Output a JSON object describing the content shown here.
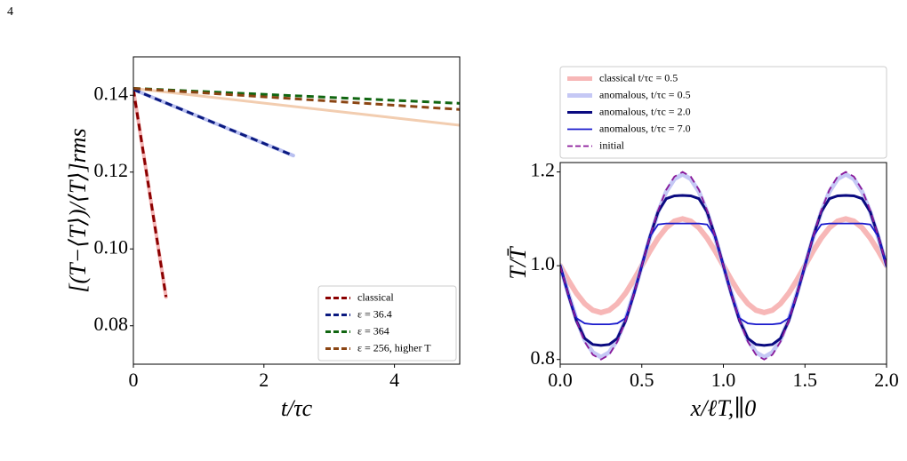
{
  "page_number": "4",
  "chart_data": [
    {
      "type": "line",
      "x_label": "t/τc",
      "y_label": "[(T−⟨T⟩)/⟨T⟩]rms",
      "xlim": [
        0,
        5
      ],
      "ylim": [
        0.07,
        0.15
      ],
      "xticks": [
        0,
        2,
        4
      ],
      "yticks": [
        0.08,
        {
          "value": 0.1,
          "label": "0.10"
        },
        0.12,
        0.14
      ],
      "legend": "lower right",
      "series": [
        {
          "color": "#f4b4b4",
          "width": 4,
          "dashed": false,
          "x": [
            0,
            0.5
          ],
          "values": [
            0.1415,
            0.0875
          ]
        },
        {
          "color": "#b8bff0",
          "width": 4,
          "dashed": false,
          "x": [
            0,
            2.45
          ],
          "values": [
            0.1415,
            0.1243
          ]
        },
        {
          "color": "#f2cdb0",
          "width": 3,
          "dashed": false,
          "x": [
            0,
            5
          ],
          "values": [
            0.1418,
            0.1322
          ]
        },
        {
          "name": "classical",
          "color": "#8b0000",
          "width": 3,
          "dashed": true,
          "x": [
            0,
            0.5
          ],
          "values": [
            0.1415,
            0.0875
          ]
        },
        {
          "name": "ε = 36.4",
          "color": "#0b1a80",
          "width": 3,
          "dashed": true,
          "x": [
            0,
            2.45
          ],
          "values": [
            0.1415,
            0.1243
          ]
        },
        {
          "name": "ε = 364",
          "color": "#116611",
          "width": 3,
          "dashed": true,
          "x": [
            0,
            5
          ],
          "values": [
            0.1418,
            0.1379
          ]
        },
        {
          "name": "ε = 256, higher T",
          "color": "#8b4513",
          "width": 3,
          "dashed": true,
          "x": [
            0,
            5
          ],
          "values": [
            0.1418,
            0.1363
          ]
        }
      ]
    },
    {
      "type": "line",
      "x_label": "x/ℓT,∥0",
      "y_label": "T/T̄",
      "xlim": [
        0,
        2
      ],
      "ylim": [
        0.79,
        1.22
      ],
      "xticks": [
        {
          "value": 0,
          "label": "0.0"
        },
        0.5,
        {
          "value": 1,
          "label": "1.0"
        },
        1.5,
        {
          "value": 2,
          "label": "2.0"
        }
      ],
      "yticks": [
        0.8,
        {
          "value": 1,
          "label": "1.0"
        },
        1.2
      ],
      "legend": "above",
      "series": [
        {
          "name": "classical t/τc = 0.5",
          "color": "#f7b7b7",
          "width": 6,
          "dashed": false,
          "x": [
            0,
            0.05,
            0.1,
            0.15,
            0.2,
            0.25,
            0.3,
            0.35,
            0.4,
            0.45,
            0.5,
            0.55,
            0.6,
            0.65,
            0.7,
            0.75,
            0.8,
            0.85,
            0.9,
            0.95,
            1,
            1.05,
            1.1,
            1.15,
            1.2,
            1.25,
            1.3,
            1.35,
            1.4,
            1.45,
            1.5,
            1.55,
            1.6,
            1.65,
            1.7,
            1.75,
            1.8,
            1.85,
            1.9,
            1.95,
            2
          ],
          "values": [
            1,
            0.969,
            0.941,
            0.919,
            0.905,
            0.9,
            0.905,
            0.919,
            0.941,
            0.969,
            1,
            1.031,
            1.059,
            1.081,
            1.095,
            1.1,
            1.095,
            1.081,
            1.059,
            1.031,
            1,
            0.969,
            0.941,
            0.919,
            0.905,
            0.9,
            0.905,
            0.919,
            0.941,
            0.969,
            1,
            1.031,
            1.059,
            1.081,
            1.095,
            1.1,
            1.095,
            1.081,
            1.059,
            1.031,
            1
          ]
        },
        {
          "name": "anomalous, t/τc = 0.5",
          "color": "#c5c8f5",
          "width": 5,
          "dashed": false,
          "x": [
            0,
            0.05,
            0.1,
            0.15,
            0.2,
            0.25,
            0.3,
            0.35,
            0.4,
            0.45,
            0.5,
            0.55,
            0.6,
            0.65,
            0.7,
            0.75,
            0.8,
            0.85,
            0.9,
            0.95,
            1,
            1.05,
            1.1,
            1.15,
            1.2,
            1.25,
            1.3,
            1.35,
            1.4,
            1.45,
            1.5,
            1.55,
            1.6,
            1.65,
            1.7,
            1.75,
            1.8,
            1.85,
            1.9,
            1.95,
            2
          ],
          "values": [
            1,
            0.94,
            0.885,
            0.842,
            0.815,
            0.805,
            0.815,
            0.842,
            0.885,
            0.94,
            1,
            1.06,
            1.115,
            1.158,
            1.185,
            1.195,
            1.185,
            1.158,
            1.115,
            1.06,
            1,
            0.94,
            0.885,
            0.842,
            0.815,
            0.805,
            0.815,
            0.842,
            0.885,
            0.94,
            1,
            1.06,
            1.115,
            1.158,
            1.185,
            1.195,
            1.185,
            1.158,
            1.115,
            1.06,
            1
          ]
        },
        {
          "name": "anomalous, t/τc = 2.0",
          "color": "#0a0a80",
          "width": 3,
          "dashed": false,
          "x": [
            0,
            0.05,
            0.1,
            0.15,
            0.2,
            0.25,
            0.3,
            0.35,
            0.4,
            0.45,
            0.5,
            0.55,
            0.6,
            0.65,
            0.7,
            0.75,
            0.8,
            0.85,
            0.9,
            0.95,
            1,
            1.05,
            1.1,
            1.15,
            1.2,
            1.25,
            1.3,
            1.35,
            1.4,
            1.45,
            1.5,
            1.55,
            1.6,
            1.65,
            1.7,
            1.75,
            1.8,
            1.85,
            1.9,
            1.95,
            2
          ],
          "values": [
            1,
            0.938,
            0.882,
            0.845,
            0.832,
            0.83,
            0.832,
            0.845,
            0.882,
            0.938,
            1,
            1.062,
            1.115,
            1.143,
            1.149,
            1.15,
            1.149,
            1.143,
            1.115,
            1.062,
            1,
            0.938,
            0.882,
            0.845,
            0.832,
            0.83,
            0.832,
            0.845,
            0.882,
            0.938,
            1,
            1.062,
            1.115,
            1.143,
            1.149,
            1.15,
            1.149,
            1.143,
            1.115,
            1.062,
            1
          ]
        },
        {
          "name": "anomalous, t/τc = 7.0",
          "color": "#1a1acc",
          "width": 1.8,
          "dashed": false,
          "x": [
            0,
            0.05,
            0.1,
            0.15,
            0.2,
            0.25,
            0.3,
            0.35,
            0.4,
            0.45,
            0.5,
            0.55,
            0.6,
            0.65,
            0.7,
            0.75,
            0.8,
            0.85,
            0.9,
            0.95,
            1,
            1.05,
            1.1,
            1.15,
            1.2,
            1.25,
            1.3,
            1.35,
            1.4,
            1.45,
            1.5,
            1.55,
            1.6,
            1.65,
            1.7,
            1.75,
            1.8,
            1.85,
            1.9,
            1.95,
            2
          ],
          "values": [
            1,
            0.938,
            0.888,
            0.877,
            0.875,
            0.875,
            0.875,
            0.877,
            0.888,
            0.938,
            1,
            1.062,
            1.088,
            1.09,
            1.09,
            1.09,
            1.09,
            1.09,
            1.088,
            1.062,
            1,
            0.938,
            0.888,
            0.877,
            0.875,
            0.875,
            0.875,
            0.877,
            0.888,
            0.938,
            1,
            1.062,
            1.088,
            1.09,
            1.09,
            1.09,
            1.09,
            1.09,
            1.088,
            1.062,
            1
          ]
        },
        {
          "name": "initial",
          "color": "#8a1a9a",
          "width": 1.8,
          "dashed": true,
          "x": [
            0,
            0.05,
            0.1,
            0.15,
            0.2,
            0.25,
            0.3,
            0.35,
            0.4,
            0.45,
            0.5,
            0.55,
            0.6,
            0.65,
            0.7,
            0.75,
            0.8,
            0.85,
            0.9,
            0.95,
            1,
            1.05,
            1.1,
            1.15,
            1.2,
            1.25,
            1.3,
            1.35,
            1.4,
            1.45,
            1.5,
            1.55,
            1.6,
            1.65,
            1.7,
            1.75,
            1.8,
            1.85,
            1.9,
            1.95,
            2
          ],
          "values": [
            1,
            0.938,
            0.882,
            0.838,
            0.81,
            0.8,
            0.81,
            0.838,
            0.882,
            0.938,
            1,
            1.062,
            1.118,
            1.162,
            1.19,
            1.2,
            1.19,
            1.162,
            1.118,
            1.062,
            1,
            0.938,
            0.882,
            0.838,
            0.81,
            0.8,
            0.81,
            0.838,
            0.882,
            0.938,
            1,
            1.062,
            1.118,
            1.162,
            1.19,
            1.2,
            1.19,
            1.162,
            1.118,
            1.062,
            1
          ]
        }
      ]
    }
  ]
}
